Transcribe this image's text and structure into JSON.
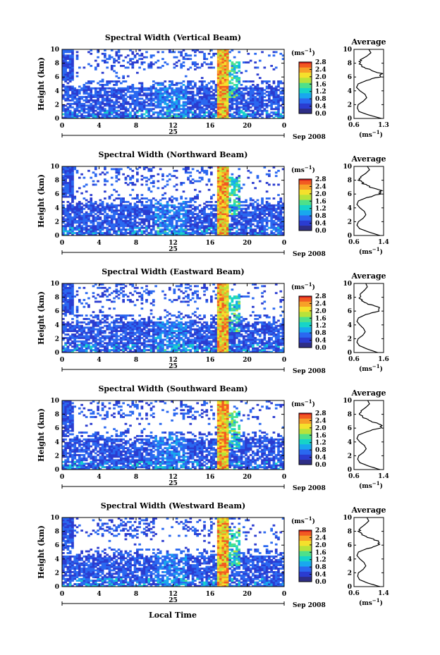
{
  "figure": {
    "x_axis_label": "Local Time",
    "date_label": "Sep 2008",
    "day_label": "25",
    "height_axis_label": "Height (km)",
    "unit_label": "(ms",
    "unit_exp": "−1",
    "unit_close": ")",
    "avg_title": "Average",
    "colorbar_ticks": [
      "2.8",
      "2.4",
      "2.0",
      "1.6",
      "1.2",
      "0.8",
      "0.4",
      "0.0"
    ],
    "palette": [
      "#2e2e86",
      "#2b3cd0",
      "#2a68f0",
      "#19a8ee",
      "#17d4c8",
      "#4ee08a",
      "#b8e23a",
      "#f5e02c",
      "#f7a028",
      "#f25a22",
      "#d61e1e"
    ]
  },
  "chart_data": [
    {
      "type": "heatmap",
      "title": "Spectral Width (Vertical Beam)",
      "xlabel": "Local Time",
      "ylabel": "Height (km)",
      "xlim": [
        0,
        24
      ],
      "ylim": [
        0,
        10
      ],
      "xticks": [
        "0",
        "4",
        "8",
        "12",
        "16",
        "20",
        "0"
      ],
      "yticks": [
        "0",
        "2",
        "4",
        "6",
        "8",
        "10"
      ],
      "colorbar": {
        "label": "(ms-1)",
        "ticks": [
          2.8,
          2.4,
          2.0,
          1.6,
          1.2,
          0.8,
          0.4,
          0.0
        ]
      },
      "average": {
        "title": "Average",
        "xlabel": "(ms-1)",
        "xlim": [
          0.6,
          1.3
        ],
        "xticks": [
          "0.6",
          "1.3"
        ],
        "profile": [
          [
            0,
            1.25
          ],
          [
            0.5,
            0.95
          ],
          [
            1,
            0.72
          ],
          [
            1.5,
            0.68
          ],
          [
            2,
            0.7
          ],
          [
            2.5,
            0.82
          ],
          [
            3,
            0.9
          ],
          [
            3.5,
            0.86
          ],
          [
            4,
            0.74
          ],
          [
            4.5,
            0.66
          ],
          [
            5,
            0.7
          ],
          [
            5.5,
            0.9
          ],
          [
            6,
            1.2
          ],
          [
            6.5,
            1.25
          ],
          [
            7,
            1.0
          ],
          [
            7.5,
            0.8
          ],
          [
            8,
            0.72
          ],
          [
            8.5,
            0.75
          ],
          [
            9,
            0.9
          ],
          [
            9.5,
            1.0
          ],
          [
            10,
            0.95
          ]
        ]
      }
    },
    {
      "type": "heatmap",
      "title": "Spectral Width (Northward Beam)",
      "xlabel": "Local Time",
      "ylabel": "Height (km)",
      "xlim": [
        0,
        24
      ],
      "ylim": [
        0,
        10
      ],
      "xticks": [
        "0",
        "4",
        "8",
        "12",
        "16",
        "20",
        "0"
      ],
      "yticks": [
        "0",
        "2",
        "4",
        "6",
        "8",
        "10"
      ],
      "colorbar": {
        "label": "(ms-1)",
        "ticks": [
          2.8,
          2.4,
          2.0,
          1.6,
          1.2,
          0.8,
          0.4,
          0.0
        ]
      },
      "average": {
        "title": "Average",
        "xlabel": "(ms-1)",
        "xlim": [
          0.6,
          1.4
        ],
        "xticks": [
          "0.6",
          "1.4"
        ],
        "profile": [
          [
            0,
            1.3
          ],
          [
            0.5,
            1.0
          ],
          [
            1,
            0.75
          ],
          [
            1.5,
            0.68
          ],
          [
            2,
            0.72
          ],
          [
            2.5,
            0.85
          ],
          [
            3,
            0.92
          ],
          [
            3.5,
            0.88
          ],
          [
            4,
            0.76
          ],
          [
            4.5,
            0.68
          ],
          [
            5,
            0.72
          ],
          [
            5.5,
            0.95
          ],
          [
            6,
            1.3
          ],
          [
            6.5,
            1.32
          ],
          [
            7,
            1.05
          ],
          [
            7.5,
            0.85
          ],
          [
            8,
            0.75
          ],
          [
            8.5,
            0.78
          ],
          [
            9,
            0.92
          ],
          [
            9.5,
            1.02
          ],
          [
            10,
            0.96
          ]
        ]
      }
    },
    {
      "type": "heatmap",
      "title": "Spectral Width (Eastward Beam)",
      "xlabel": "Local Time",
      "ylabel": "Height (km)",
      "xlim": [
        0,
        24
      ],
      "ylim": [
        0,
        10
      ],
      "xticks": [
        "0",
        "4",
        "8",
        "12",
        "16",
        "20",
        "0"
      ],
      "yticks": [
        "0",
        "2",
        "4",
        "6",
        "8",
        "10"
      ],
      "colorbar": {
        "label": "(ms-1)",
        "ticks": [
          2.8,
          2.4,
          2.0,
          1.6,
          1.2,
          0.8,
          0.4,
          0.0
        ]
      },
      "average": {
        "title": "Average",
        "xlabel": "(ms-1)",
        "xlim": [
          0.6,
          1.6
        ],
        "xticks": [
          "0.6",
          "1.6"
        ],
        "profile": [
          [
            0,
            1.4
          ],
          [
            0.5,
            1.05
          ],
          [
            1,
            0.78
          ],
          [
            1.5,
            0.7
          ],
          [
            2,
            0.74
          ],
          [
            2.5,
            0.9
          ],
          [
            3,
            0.98
          ],
          [
            3.5,
            0.92
          ],
          [
            4,
            0.8
          ],
          [
            4.5,
            0.7
          ],
          [
            5,
            0.75
          ],
          [
            5.5,
            1.0
          ],
          [
            6,
            1.42
          ],
          [
            6.5,
            1.45
          ],
          [
            7,
            1.1
          ],
          [
            7.5,
            0.88
          ],
          [
            8,
            0.78
          ],
          [
            8.5,
            0.82
          ],
          [
            9,
            0.95
          ],
          [
            9.5,
            1.05
          ],
          [
            10,
            1.0
          ]
        ]
      }
    },
    {
      "type": "heatmap",
      "title": "Spectral Width (Southward Beam)",
      "xlabel": "Local Time",
      "ylabel": "Height (km)",
      "xlim": [
        0,
        24
      ],
      "ylim": [
        0,
        10
      ],
      "xticks": [
        "0",
        "4",
        "8",
        "12",
        "16",
        "20",
        "0"
      ],
      "yticks": [
        "0",
        "2",
        "4",
        "6",
        "8",
        "10"
      ],
      "colorbar": {
        "label": "(ms-1)",
        "ticks": [
          2.8,
          2.4,
          2.0,
          1.6,
          1.2,
          0.8,
          0.4,
          0.0
        ]
      },
      "average": {
        "title": "Average",
        "xlabel": "(ms-1)",
        "xlim": [
          0.6,
          1.4
        ],
        "xticks": [
          "0.6",
          "1.4"
        ],
        "profile": [
          [
            0,
            1.3
          ],
          [
            0.5,
            1.0
          ],
          [
            1,
            0.76
          ],
          [
            1.5,
            0.7
          ],
          [
            2,
            0.73
          ],
          [
            2.5,
            0.86
          ],
          [
            3,
            0.93
          ],
          [
            3.5,
            0.88
          ],
          [
            4,
            0.76
          ],
          [
            4.5,
            0.68
          ],
          [
            5,
            0.72
          ],
          [
            5.5,
            0.96
          ],
          [
            6,
            1.3
          ],
          [
            6.5,
            1.33
          ],
          [
            7,
            1.05
          ],
          [
            7.5,
            0.86
          ],
          [
            8,
            0.76
          ],
          [
            8.5,
            0.79
          ],
          [
            9,
            0.92
          ],
          [
            9.5,
            1.02
          ],
          [
            10,
            0.97
          ]
        ]
      }
    },
    {
      "type": "heatmap",
      "title": "Spectral Width (Westward Beam)",
      "xlabel": "Local Time",
      "ylabel": "Height (km)",
      "xlim": [
        0,
        24
      ],
      "ylim": [
        0,
        10
      ],
      "xticks": [
        "0",
        "4",
        "8",
        "12",
        "16",
        "20",
        "0"
      ],
      "yticks": [
        "0",
        "2",
        "4",
        "6",
        "8",
        "10"
      ],
      "colorbar": {
        "label": "(ms-1)",
        "ticks": [
          2.8,
          2.4,
          2.0,
          1.6,
          1.2,
          0.8,
          0.4,
          0.0
        ]
      },
      "average": {
        "title": "Average",
        "xlabel": "(ms-1)",
        "xlim": [
          0.6,
          1.4
        ],
        "xticks": [
          "0.6",
          "1.4"
        ],
        "profile": [
          [
            0,
            1.3
          ],
          [
            0.5,
            0.98
          ],
          [
            1,
            0.75
          ],
          [
            1.5,
            0.7
          ],
          [
            2,
            0.72
          ],
          [
            2.5,
            0.85
          ],
          [
            3,
            0.92
          ],
          [
            3.5,
            0.87
          ],
          [
            4,
            0.76
          ],
          [
            4.5,
            0.68
          ],
          [
            5,
            0.72
          ],
          [
            5.5,
            0.95
          ],
          [
            6,
            1.28
          ],
          [
            6.5,
            1.3
          ],
          [
            7,
            1.04
          ],
          [
            7.5,
            0.85
          ],
          [
            8,
            0.75
          ],
          [
            8.5,
            0.78
          ],
          [
            9,
            0.9
          ],
          [
            9.5,
            1.0
          ],
          [
            10,
            0.95
          ]
        ]
      }
    }
  ]
}
